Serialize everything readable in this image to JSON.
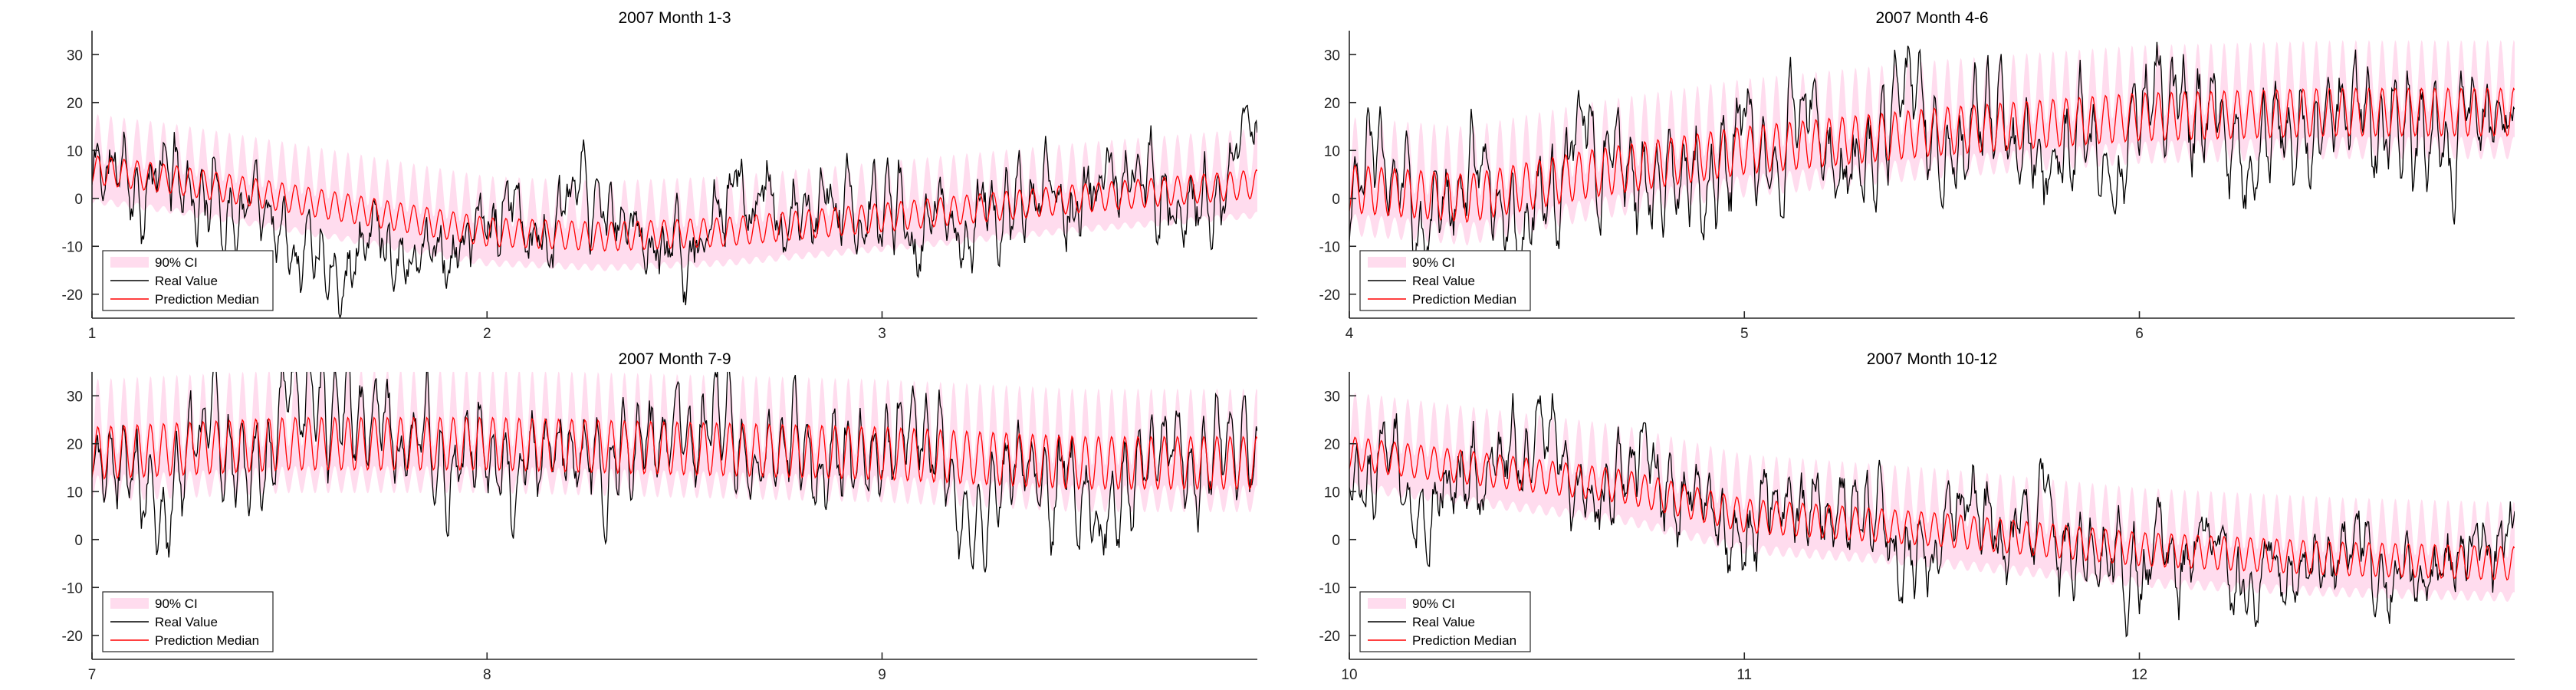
{
  "colors": {
    "ci": "#ffdcee",
    "real": "#000000",
    "median": "#ff0000"
  },
  "legend": {
    "ci": "90% CI",
    "real": "Real Value",
    "median": "Prediction Median"
  },
  "chart_data": [
    {
      "type": "line",
      "title": "2007 Month 1-3",
      "xlim": [
        1,
        3.95
      ],
      "ylim": [
        -25,
        35
      ],
      "xticks": [
        1,
        2,
        3
      ],
      "yticks": [
        -20,
        -10,
        0,
        10,
        20,
        30
      ],
      "legend_position": "bottom-left",
      "seed": 11,
      "trend_x": [
        1,
        1.2,
        1.5,
        2.0,
        2.3,
        2.6,
        3.0,
        3.5,
        3.95
      ],
      "trend_y": [
        6,
        4,
        0,
        -7,
        -8,
        -7,
        -4,
        0,
        3
      ],
      "daily_amplitude": 3.0,
      "ci_half_width": 6.5,
      "noise": 5.5,
      "series": [
        {
          "name": "90% CI",
          "kind": "band"
        },
        {
          "name": "Real Value",
          "kind": "line"
        },
        {
          "name": "Prediction Median",
          "kind": "line"
        }
      ]
    },
    {
      "type": "line",
      "title": "2007 Month 4-6",
      "xlim": [
        4,
        6.95
      ],
      "ylim": [
        -25,
        35
      ],
      "xticks": [
        4,
        5,
        6
      ],
      "yticks": [
        -20,
        -10,
        0,
        10,
        20,
        30
      ],
      "legend_position": "bottom-left",
      "seed": 23,
      "trend_x": [
        4,
        4.3,
        4.6,
        5.0,
        5.5,
        6.0,
        6.5,
        6.95
      ],
      "trend_y": [
        2,
        0,
        5,
        10,
        14,
        17,
        18,
        18
      ],
      "daily_amplitude": 5.0,
      "ci_half_width": 7.5,
      "noise": 6.0,
      "series": [
        {
          "name": "90% CI",
          "kind": "band"
        },
        {
          "name": "Real Value",
          "kind": "line"
        },
        {
          "name": "Prediction Median",
          "kind": "line"
        }
      ]
    },
    {
      "type": "line",
      "title": "2007 Month 7-9",
      "xlim": [
        7,
        9.95
      ],
      "ylim": [
        -25,
        35
      ],
      "xticks": [
        7,
        8,
        9
      ],
      "yticks": [
        -20,
        -10,
        0,
        10,
        20,
        30
      ],
      "legend_position": "bottom-left",
      "seed": 37,
      "trend_x": [
        7,
        7.5,
        8.0,
        8.5,
        9.0,
        9.5,
        9.95
      ],
      "trend_y": [
        18,
        20,
        20,
        19,
        18,
        16,
        16
      ],
      "daily_amplitude": 5.5,
      "ci_half_width": 7.5,
      "noise": 5.0,
      "series": [
        {
          "name": "90% CI",
          "kind": "band"
        },
        {
          "name": "Real Value",
          "kind": "line"
        },
        {
          "name": "Prediction Median",
          "kind": "line"
        }
      ]
    },
    {
      "type": "line",
      "title": "2007 Month 10-12",
      "xlim": [
        10,
        12.95
      ],
      "ylim": [
        -25,
        35
      ],
      "xticks": [
        10,
        11,
        12
      ],
      "yticks": [
        -20,
        -10,
        0,
        10,
        20,
        30
      ],
      "legend_position": "bottom-left",
      "seed": 53,
      "trend_x": [
        10,
        10.3,
        10.7,
        11.0,
        11.5,
        12.0,
        12.5,
        12.95
      ],
      "trend_y": [
        18,
        15,
        11,
        5,
        2,
        -2,
        -4,
        -5
      ],
      "daily_amplitude": 3.5,
      "ci_half_width": 7.0,
      "noise": 5.5,
      "series": [
        {
          "name": "90% CI",
          "kind": "band"
        },
        {
          "name": "Real Value",
          "kind": "line"
        },
        {
          "name": "Prediction Median",
          "kind": "line"
        }
      ]
    }
  ]
}
